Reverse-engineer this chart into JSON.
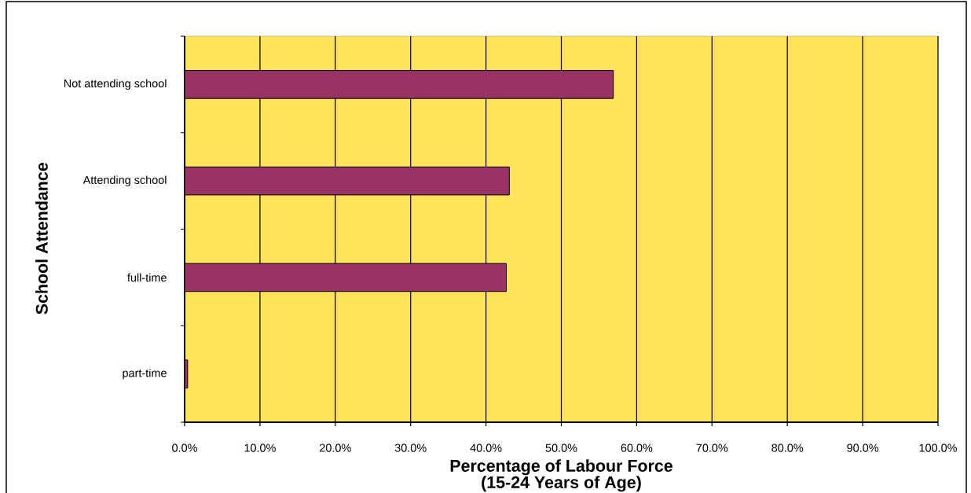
{
  "chart_data": {
    "type": "bar",
    "orientation": "horizontal",
    "categories": [
      "Not attending school",
      "Attending school",
      "full-time",
      "part-time"
    ],
    "values": [
      56.9,
      43.1,
      42.7,
      0.4
    ],
    "color": "#993366",
    "xlabel": "Percentage of Labour Force (15-24 Years of Age)",
    "ylabel": "School Attendance",
    "xlim": [
      0,
      100
    ],
    "xticks": [
      {
        "value": 0,
        "label": "0.0%"
      },
      {
        "value": 10,
        "label": "10.0%"
      },
      {
        "value": 20,
        "label": "20.0%"
      },
      {
        "value": 30,
        "label": "30.0%"
      },
      {
        "value": 40,
        "label": "40.0%"
      },
      {
        "value": 50,
        "label": "50.0%"
      },
      {
        "value": 60,
        "label": "60.0%"
      },
      {
        "value": 70,
        "label": "70.0%"
      },
      {
        "value": 80,
        "label": "80.0%"
      },
      {
        "value": 90,
        "label": "90.0%"
      },
      {
        "value": 100,
        "label": "100.0%"
      }
    ],
    "grid": "x"
  }
}
